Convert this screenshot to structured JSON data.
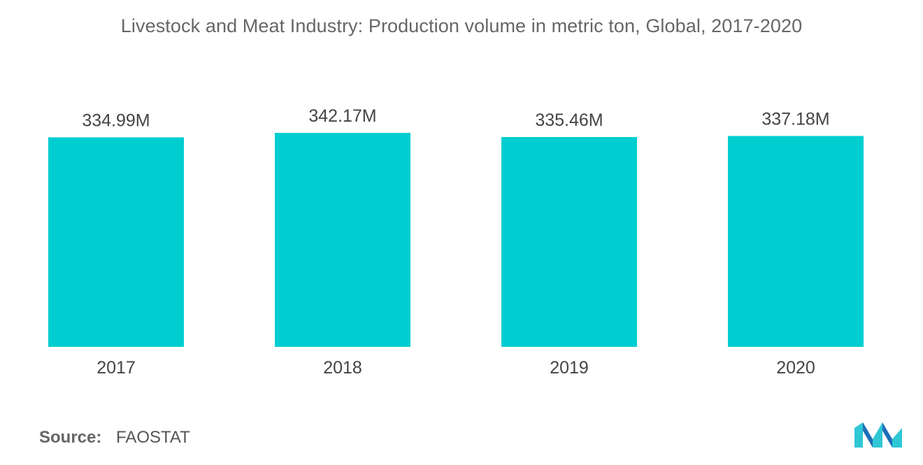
{
  "chart_data": {
    "type": "bar",
    "title": "Livestock and Meat Industry: Production volume in metric ton, Global, 2017-2020",
    "categories": [
      "2017",
      "2018",
      "2019",
      "2020"
    ],
    "values": [
      334.99,
      342.17,
      335.46,
      337.18
    ],
    "data_labels": [
      "334.99M",
      "342.17M",
      "335.46M",
      "337.18M"
    ],
    "xlabel": "",
    "ylabel": "",
    "ylim": [
      0,
      342.17
    ],
    "grid": false,
    "legend": "none",
    "bar_color": "#00CED1"
  },
  "source": {
    "label": "Source:",
    "value": "FAOSTAT"
  },
  "logo": {
    "icon": "mordor-intelligence-logo",
    "colors": [
      "#1F6FB5",
      "#2FC7D6"
    ]
  }
}
